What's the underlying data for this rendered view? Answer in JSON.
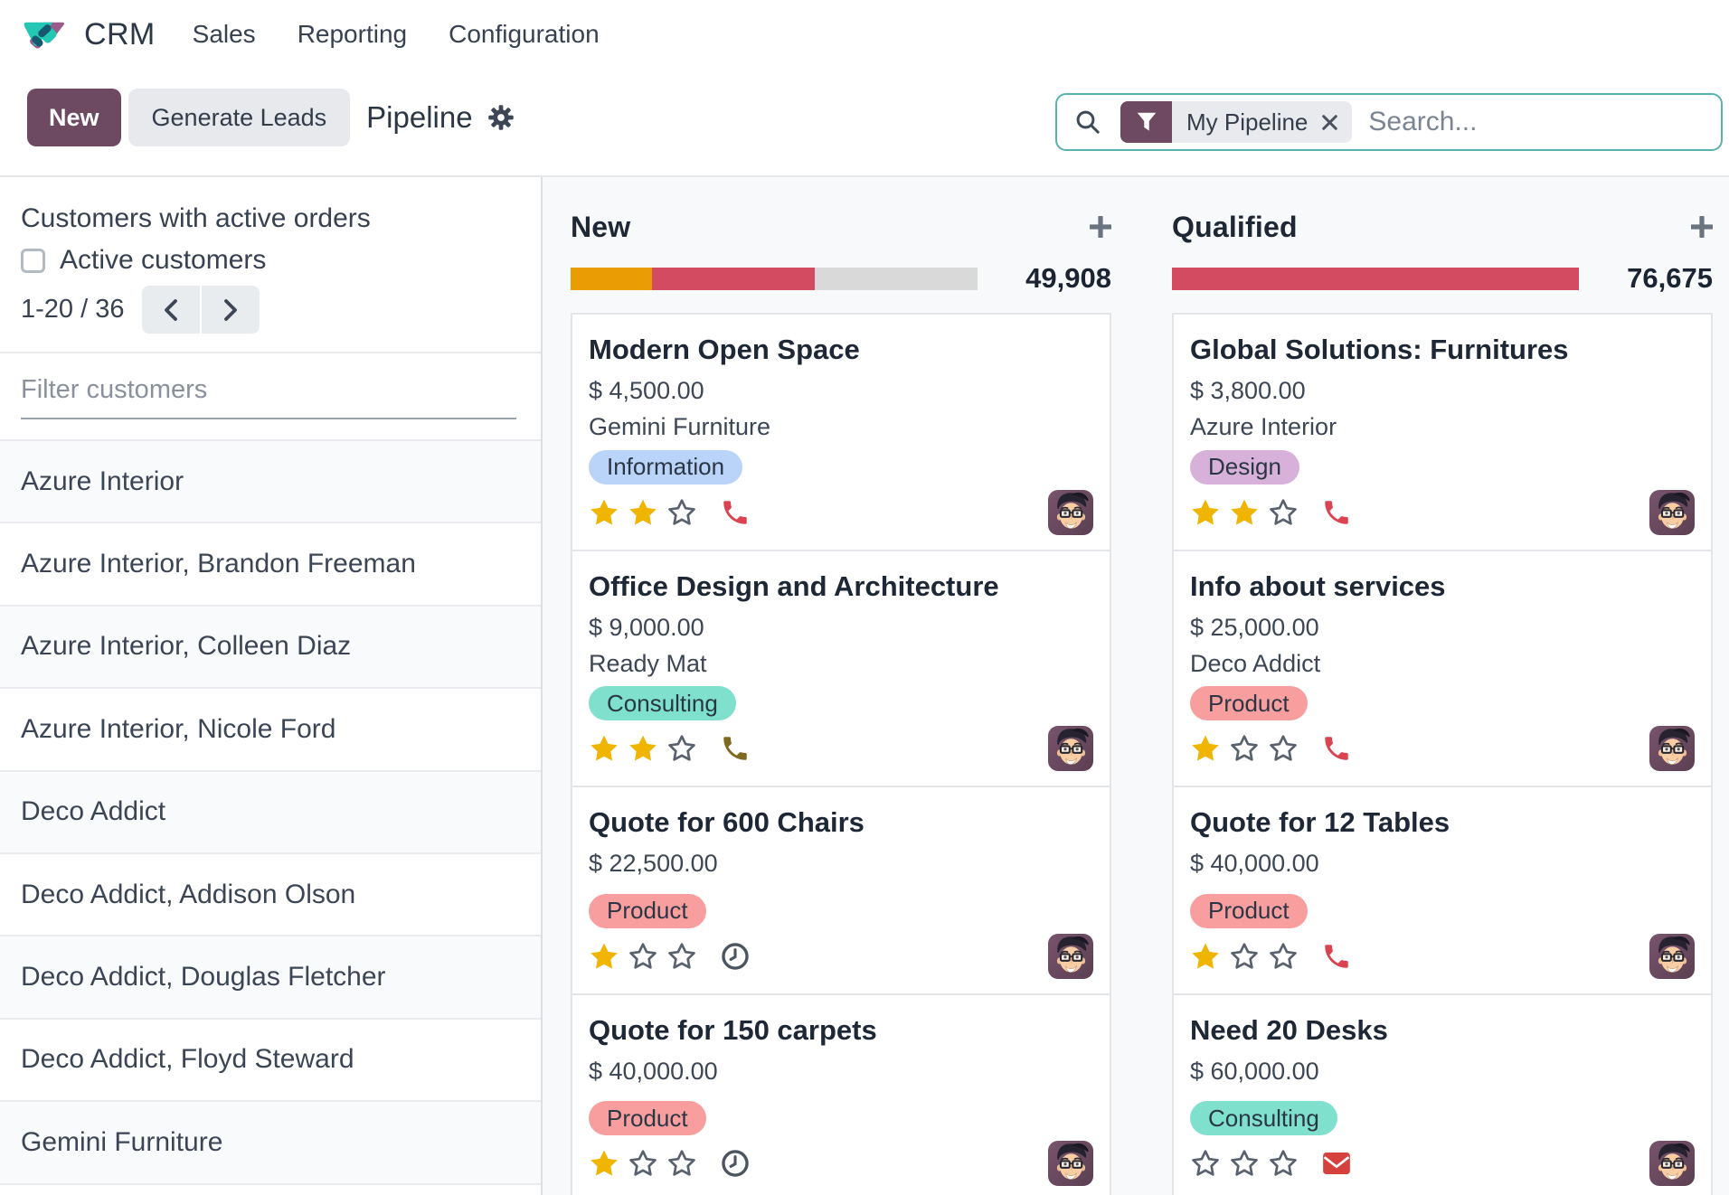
{
  "nav": {
    "brand": "CRM",
    "items": [
      {
        "label": "Sales"
      },
      {
        "label": "Reporting"
      },
      {
        "label": "Configuration"
      }
    ]
  },
  "control": {
    "new_label": "New",
    "generate_label": "Generate Leads",
    "title": "Pipeline",
    "search": {
      "facet_label": "My Pipeline",
      "placeholder": "Search..."
    }
  },
  "sidebar": {
    "heading": "Customers with active orders",
    "checkbox_label": "Active customers",
    "checkbox_checked": false,
    "pager_value": "1-20 / 36",
    "filter_placeholder": "Filter customers",
    "customers": [
      {
        "name": "Azure Interior"
      },
      {
        "name": "Azure Interior, Brandon Freeman"
      },
      {
        "name": "Azure Interior, Colleen Diaz"
      },
      {
        "name": "Azure Interior, Nicole Ford"
      },
      {
        "name": "Deco Addict"
      },
      {
        "name": "Deco Addict, Addison Olson"
      },
      {
        "name": "Deco Addict, Douglas Fletcher"
      },
      {
        "name": "Deco Addict, Floyd Steward"
      },
      {
        "name": "Gemini Furniture"
      }
    ]
  },
  "board": {
    "columns": [
      {
        "title": "New",
        "count": "49,908",
        "progress": [
          {
            "label": "in-progress",
            "color": "#ea9c05",
            "pct": 20
          },
          {
            "label": "overdue",
            "color": "#d34b60",
            "pct": 40
          },
          {
            "label": "remaining",
            "color": "#d9d9d9",
            "pct": 40
          }
        ],
        "cards": [
          {
            "title": "Modern Open Space",
            "amount": "$ 4,500.00",
            "company": "Gemini Furniture",
            "tag": "Information",
            "tag_color": "#b9d4f8",
            "stars": 2,
            "activity": "phone",
            "activity_color": "#dc4350"
          },
          {
            "title": "Office Design and Architecture",
            "amount": "$ 9,000.00",
            "company": "Ready Mat",
            "tag": "Consulting",
            "tag_color": "#7fe0cd",
            "stars": 2,
            "activity": "phone",
            "activity_color": "#7f6a1f"
          },
          {
            "title": "Quote for 600 Chairs",
            "amount": "$ 22,500.00",
            "company": "",
            "tag": "Product",
            "tag_color": "#f99e9e",
            "stars": 1,
            "activity": "clock",
            "activity_color": "#4b5560"
          },
          {
            "title": "Quote for 150 carpets",
            "amount": "$ 40,000.00",
            "company": "",
            "tag": "Product",
            "tag_color": "#f99e9e",
            "stars": 1,
            "activity": "clock",
            "activity_color": "#4b5560"
          }
        ]
      },
      {
        "title": "Qualified",
        "count": "76,675",
        "progress": [
          {
            "label": "overdue",
            "color": "#d34b60",
            "pct": 100
          }
        ],
        "cards": [
          {
            "title": "Global Solutions: Furnitures",
            "amount": "$ 3,800.00",
            "company": "Azure Interior",
            "tag": "Design",
            "tag_color": "#d7b1da",
            "stars": 2,
            "activity": "phone",
            "activity_color": "#dc4350"
          },
          {
            "title": "Info about services",
            "amount": "$ 25,000.00",
            "company": "Deco Addict",
            "tag": "Product",
            "tag_color": "#f99e9e",
            "stars": 1,
            "activity": "phone",
            "activity_color": "#dc4350"
          },
          {
            "title": "Quote for 12 Tables",
            "amount": "$ 40,000.00",
            "company": "",
            "tag": "Product",
            "tag_color": "#f99e9e",
            "stars": 1,
            "activity": "phone",
            "activity_color": "#dc4350"
          },
          {
            "title": "Need 20 Desks",
            "amount": "$ 60,000.00",
            "company": "",
            "tag": "Consulting",
            "tag_color": "#7fe0cd",
            "stars": 0,
            "activity": "envelope",
            "activity_color": "#d5423d"
          }
        ]
      }
    ]
  }
}
